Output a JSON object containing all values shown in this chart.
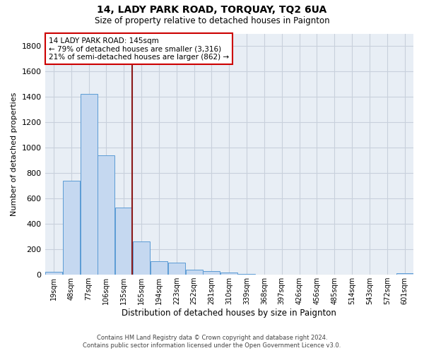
{
  "title": "14, LADY PARK ROAD, TORQUAY, TQ2 6UA",
  "subtitle": "Size of property relative to detached houses in Paignton",
  "xlabel": "Distribution of detached houses by size in Paignton",
  "ylabel": "Number of detached properties",
  "footer_line1": "Contains HM Land Registry data © Crown copyright and database right 2024.",
  "footer_line2": "Contains public sector information licensed under the Open Government Licence v3.0.",
  "bar_labels": [
    "19sqm",
    "48sqm",
    "77sqm",
    "106sqm",
    "135sqm",
    "165sqm",
    "194sqm",
    "223sqm",
    "252sqm",
    "281sqm",
    "310sqm",
    "339sqm",
    "368sqm",
    "397sqm",
    "426sqm",
    "456sqm",
    "485sqm",
    "514sqm",
    "543sqm",
    "572sqm",
    "601sqm"
  ],
  "bar_values": [
    22,
    742,
    1422,
    938,
    530,
    265,
    105,
    93,
    38,
    27,
    15,
    8,
    2,
    2,
    1,
    0,
    0,
    0,
    0,
    0,
    12
  ],
  "bar_color": "#c5d8f0",
  "bar_edge_color": "#5b9bd5",
  "ylim": [
    0,
    1900
  ],
  "yticks": [
    0,
    200,
    400,
    600,
    800,
    1000,
    1200,
    1400,
    1600,
    1800
  ],
  "annotation_text_line1": "14 LADY PARK ROAD: 145sqm",
  "annotation_text_line2": "← 79% of detached houses are smaller (3,316)",
  "annotation_text_line3": "21% of semi-detached houses are larger (862) →",
  "vline_color": "#8b1a1a",
  "annotation_box_color": "#ffffff",
  "annotation_box_edge": "#cc0000",
  "grid_color": "#c8d0dc",
  "background_color": "#e8eef5",
  "vline_bin_index": 4,
  "vline_right_edge": true
}
